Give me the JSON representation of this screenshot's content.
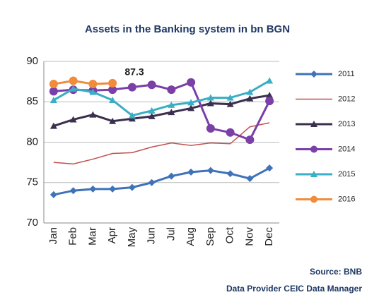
{
  "chart_data": {
    "type": "line",
    "title": "Assets in the Banking  system in bn BGN",
    "annotation": "87.3",
    "source": "Source: BNB",
    "provider": "Data Provider CEIC Data Manager",
    "categories": [
      "Jan",
      "Feb",
      "Mar",
      "Apr",
      "May",
      "Jun",
      "Jul",
      "Aug",
      "Sep",
      "Oct",
      "Nov",
      "Dec"
    ],
    "series": [
      {
        "name": "2011",
        "color": "#3f72b8",
        "marker": "diamond",
        "values": [
          73.5,
          74.0,
          74.2,
          74.2,
          74.4,
          75.0,
          75.8,
          76.3,
          76.5,
          76.1,
          75.5,
          76.8
        ]
      },
      {
        "name": "2012",
        "color": "#c0504d",
        "marker": "none",
        "values": [
          77.5,
          77.3,
          77.9,
          78.6,
          78.7,
          79.4,
          79.9,
          79.6,
          79.9,
          79.8,
          81.9,
          82.4
        ]
      },
      {
        "name": "2013",
        "color": "#3b2f4f",
        "marker": "triangle",
        "values": [
          82.0,
          82.8,
          83.4,
          82.6,
          82.9,
          83.2,
          83.7,
          84.2,
          84.8,
          84.7,
          85.4,
          85.8
        ]
      },
      {
        "name": "2014",
        "color": "#7b3fa8",
        "marker": "circle",
        "values": [
          86.3,
          86.5,
          86.4,
          86.5,
          86.8,
          87.1,
          86.5,
          87.4,
          81.7,
          81.2,
          80.3,
          85.1
        ]
      },
      {
        "name": "2015",
        "color": "#3aaec4",
        "marker": "triangle",
        "values": [
          85.2,
          86.6,
          86.2,
          85.2,
          83.3,
          83.9,
          84.6,
          84.9,
          85.5,
          85.5,
          86.2,
          87.6
        ]
      },
      {
        "name": "2016",
        "color": "#f08c3c",
        "marker": "circle",
        "values": [
          87.2,
          87.6,
          87.2,
          87.3,
          null,
          null,
          null,
          null,
          null,
          null,
          null,
          null
        ]
      }
    ],
    "ylim": [
      70,
      90
    ],
    "yticks": [
      70,
      75,
      80,
      85,
      90
    ],
    "grid": true,
    "legend": "right"
  }
}
